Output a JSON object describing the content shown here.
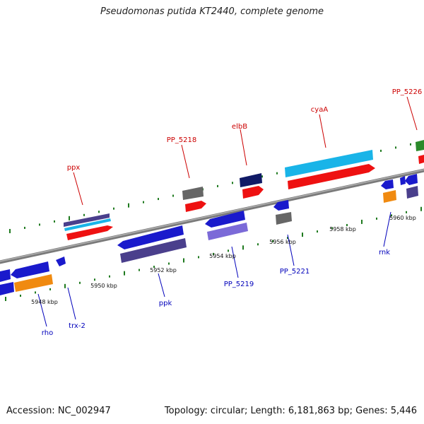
{
  "title": "Pseudomonas putida KT2440, complete genome",
  "accession": "Accession: NC_002947",
  "summary": "Topology: circular; Length: 6,181,863 bp; Genes: 5,446",
  "colors": {
    "backbone": "#8a8a8a",
    "tick": "#1f7a1f",
    "label_plus": "#cc0000",
    "label_minus": "#0000bb"
  },
  "scale_labels": [
    "5948 kbp",
    "5950 kbp",
    "5952 kbp",
    "5954 kbp",
    "5956 kbp",
    "5958 kbp",
    "5960 kbp"
  ],
  "gene_labels": {
    "plus": [
      "ppx",
      "PP_5218",
      "elbB",
      "cyaA",
      "PP_5226"
    ],
    "minus": [
      "rho",
      "trx-2",
      "ppk",
      "PP_5219",
      "PP_5221",
      "rnk"
    ]
  }
}
